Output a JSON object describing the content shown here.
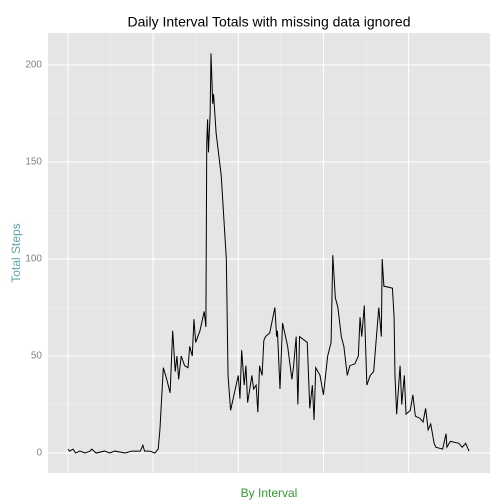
{
  "chart_data": {
    "type": "line",
    "title": "Daily Interval Totals with missing data ignored",
    "x_label": "By Interval",
    "y_label": "Total Steps",
    "x": [
      0,
      10,
      30,
      45,
      70,
      100,
      130,
      140,
      165,
      215,
      245,
      275,
      335,
      375,
      425,
      435,
      440,
      450,
      480,
      510,
      530,
      540,
      560,
      580,
      600,
      615,
      630,
      640,
      650,
      665,
      685,
      705,
      715,
      730,
      740,
      750,
      775,
      800,
      810,
      815,
      820,
      825,
      835,
      840,
      850,
      855,
      870,
      900,
      930,
      940,
      955,
      975,
      1000,
      1010,
      1020,
      1035,
      1045,
      1055,
      1080,
      1090,
      1105,
      1115,
      1125,
      1140,
      1150,
      1160,
      1185,
      1215,
      1225,
      1230,
      1245,
      1260,
      1290,
      1315,
      1325,
      1340,
      1350,
      1360,
      1405,
      1420,
      1435,
      1445,
      1455,
      1480,
      1500,
      1525,
      1545,
      1555,
      1570,
      1585,
      1605,
      1620,
      1640,
      1655,
      1685,
      1705,
      1715,
      1725,
      1740,
      1755,
      1775,
      1795,
      1815,
      1825,
      1840,
      1845,
      1855,
      1905,
      1915,
      1920,
      1930,
      1950,
      1960,
      1975,
      1985,
      2010,
      2025,
      2040,
      2065,
      2085,
      2100,
      2115,
      2130,
      2150,
      2160,
      2200,
      2220,
      2225,
      2245,
      2295,
      2315,
      2335,
      2355
    ],
    "series": [
      {
        "name": "Total Steps",
        "color": "#000000",
        "values": [
          2,
          1,
          2,
          0,
          1,
          0,
          1,
          2,
          0,
          1,
          0,
          1,
          0,
          1,
          1,
          3,
          4,
          1,
          1,
          0,
          2,
          12,
          44,
          38,
          31,
          63,
          42,
          50,
          38,
          50,
          45,
          44,
          55,
          50,
          69,
          57,
          63,
          73,
          65,
          160,
          172,
          155,
          175,
          206,
          180,
          185,
          165,
          143,
          100,
          40,
          22,
          30,
          40,
          28,
          53,
          35,
          45,
          26,
          40,
          33,
          35,
          21,
          45,
          40,
          58,
          60,
          62,
          75,
          60,
          63,
          33,
          67,
          55,
          38,
          45,
          60,
          25,
          60,
          57,
          23,
          35,
          17,
          44,
          40,
          30,
          50,
          57,
          102,
          80,
          75,
          60,
          55,
          40,
          45,
          46,
          50,
          70,
          60,
          76,
          35,
          40,
          42,
          64,
          75,
          60,
          100,
          86,
          85,
          70,
          40,
          20,
          45,
          25,
          40,
          20,
          22,
          30,
          19,
          18,
          16,
          23,
          12,
          15,
          5,
          3,
          2,
          10,
          3,
          6,
          5,
          3,
          5,
          1
        ]
      }
    ],
    "xlim": [
      -117,
      2478
    ],
    "xticks": [
      0,
      500,
      1000,
      1500,
      2000
    ],
    "ylim": [
      -10.3,
      216.5
    ],
    "yticks": [
      0,
      50,
      100,
      150,
      200
    ],
    "grid": true,
    "background": "#e5e5e5",
    "title_color": "#000000",
    "x_label_color": "#339933",
    "y_label_color": "#5fa8a8"
  }
}
